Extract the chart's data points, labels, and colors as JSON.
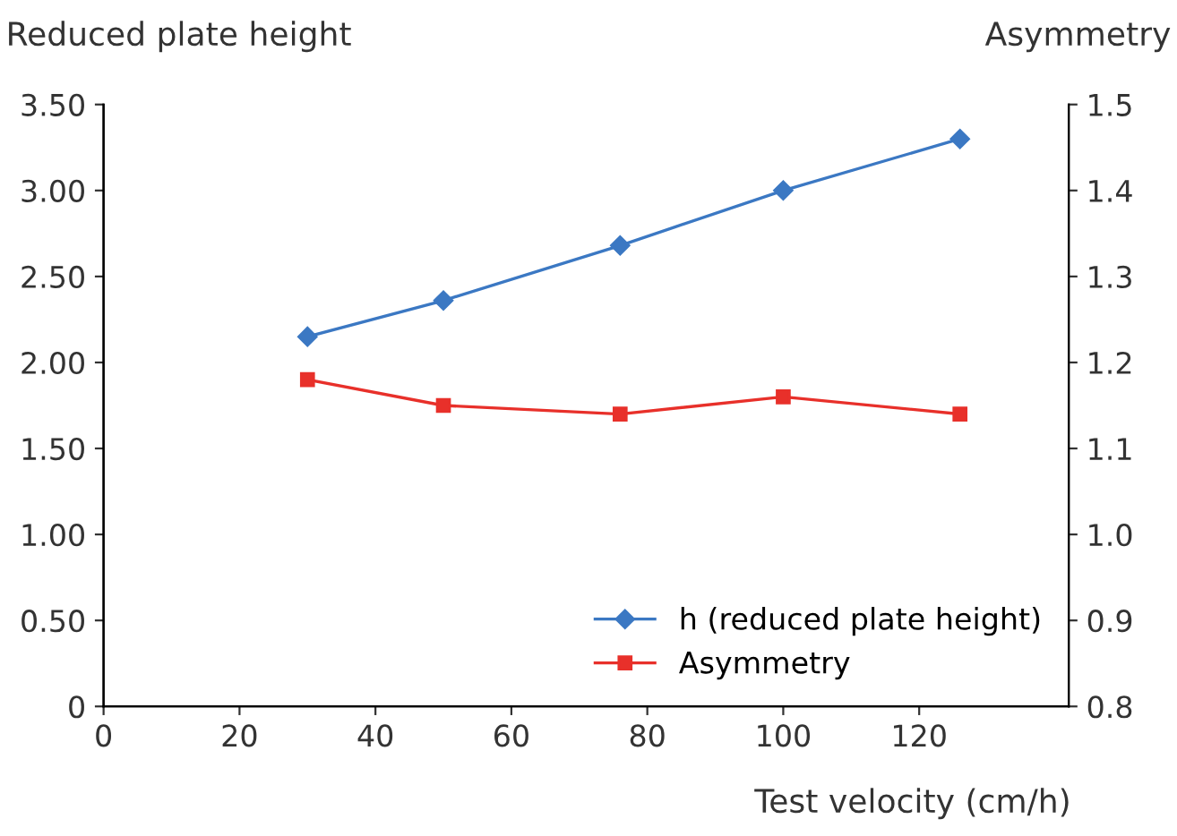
{
  "chart_data": {
    "type": "line",
    "ylabel": "Reduced plate height",
    "y2label": "Asymmetry",
    "xlabel": "Test velocity (cm/h)",
    "xlim": [
      0,
      142
    ],
    "xticks": [
      0,
      20,
      40,
      60,
      80,
      100,
      120
    ],
    "ylim": [
      0,
      3.5
    ],
    "yticks": [
      {
        "value": 0,
        "label": "0"
      },
      {
        "value": 0.5,
        "label": "0.50"
      },
      {
        "value": 1,
        "label": "1.00"
      },
      {
        "value": 1.5,
        "label": "1.50"
      },
      {
        "value": 2,
        "label": "2.00"
      },
      {
        "value": 2.5,
        "label": "2.50"
      },
      {
        "value": 3,
        "label": "3.00"
      },
      {
        "value": 3.5,
        "label": "3.50"
      }
    ],
    "y2lim": [
      0.8,
      1.5
    ],
    "y2ticks": [
      0.8,
      0.9,
      {
        "value": 1,
        "label": "1.0"
      },
      1.1,
      1.2,
      1.3,
      1.4,
      1.5
    ],
    "x": [
      30,
      50,
      76,
      100,
      126
    ],
    "series": [
      {
        "name": "h (reduced plate height)",
        "color": "#3b78c3",
        "marker": "diamond",
        "values": [
          2.15,
          2.36,
          2.68,
          3.0,
          3.3
        ]
      },
      {
        "name": "Asymmetry",
        "color": "#e8302a",
        "marker": "square",
        "axis": "y2",
        "values": [
          1.18,
          1.15,
          1.14,
          1.16,
          1.14
        ]
      }
    ],
    "grid": false,
    "legend": "bottom right",
    "line_style": "solid"
  }
}
